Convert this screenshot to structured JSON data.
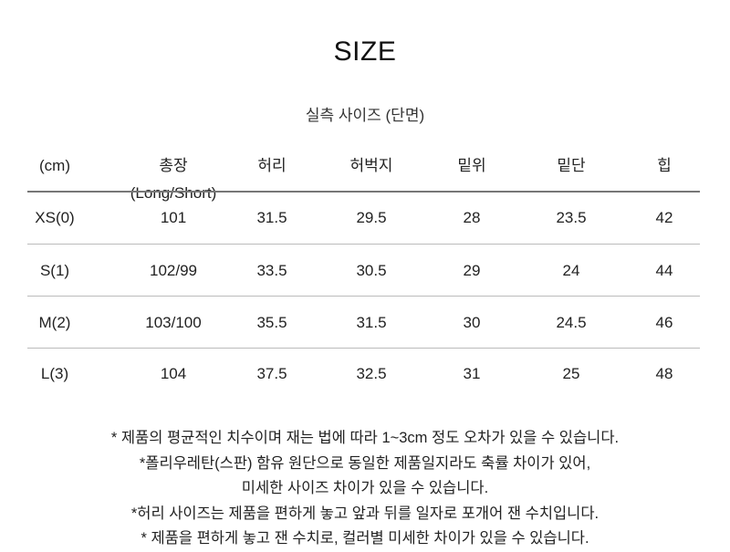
{
  "title": "SIZE",
  "subtitle": "실측 사이즈 (단면)",
  "table": {
    "headers": [
      "(cm)",
      "총장(Long/Short)",
      "허리",
      "허벅지",
      "밑위",
      "밑단",
      "힙"
    ],
    "rows": [
      [
        "XS(0)",
        "101",
        "31.5",
        "29.5",
        "28",
        "23.5",
        "42"
      ],
      [
        "S(1)",
        "102/99",
        "33.5",
        "30.5",
        "29",
        "24",
        "44"
      ],
      [
        "M(2)",
        "103/100",
        "35.5",
        "31.5",
        "30",
        "24.5",
        "46"
      ],
      [
        "L(3)",
        "104",
        "37.5",
        "32.5",
        "31",
        "25",
        "48"
      ]
    ]
  },
  "notes": [
    "* 제품의 평균적인 치수이며 재는 법에 따라 1~3cm 정도 오차가 있을 수 있습니다.",
    "*폴리우레탄(스판) 함유 원단으로 동일한 제품일지라도 축률 차이가 있어,",
    "미세한 사이즈 차이가 있을 수 있습니다.",
    "*허리 사이즈는 제품을 편하게 놓고 앞과 뒤를 일자로 포개어 잰 수치입니다.",
    "* 제품을 편하게 놓고 잰 수치로, 컬러별 미세한 차이가 있을 수 있습니다."
  ]
}
